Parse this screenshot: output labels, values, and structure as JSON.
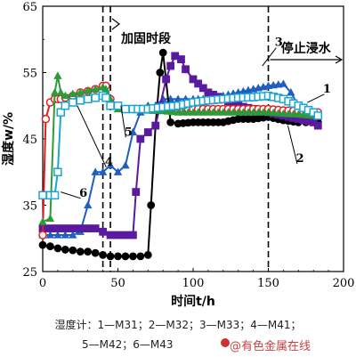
{
  "chart_data": {
    "type": "line",
    "xlabel": "时间t/h",
    "ylabel": "湿度w/%",
    "xlim": [
      0,
      200
    ],
    "ylim": [
      25,
      65
    ],
    "xticks": [
      0,
      50,
      100,
      150,
      200
    ],
    "yticks": [
      25,
      35,
      45,
      55,
      65
    ],
    "annotations": {
      "reinforce": "加固时段",
      "stop": "停止浸水"
    },
    "vlines": [
      40,
      45,
      150
    ],
    "series": [
      {
        "name": "1",
        "label_at": [
          189,
          52
        ],
        "color": "#1f5fbf",
        "marker": "triangle",
        "x": [
          0,
          5,
          10,
          15,
          20,
          25,
          30,
          35,
          40,
          45,
          50,
          55,
          60,
          65,
          70,
          75,
          80,
          85,
          90,
          95,
          100,
          110,
          120,
          130,
          140,
          150,
          160,
          165,
          170,
          175,
          180,
          183
        ],
        "y": [
          30.5,
          30.5,
          30.5,
          30.5,
          30.5,
          31,
          35,
          40,
          40,
          41,
          40,
          41,
          46,
          49,
          50,
          50,
          51,
          51,
          51,
          51,
          51,
          51,
          51.5,
          52,
          52.5,
          53,
          53.3,
          52,
          50,
          49,
          48.5,
          48
        ]
      },
      {
        "name": "2",
        "label_at": [
          171,
          41.5
        ],
        "color": "#000000",
        "marker": "circle",
        "x": [
          0,
          5,
          10,
          15,
          20,
          25,
          30,
          35,
          40,
          45,
          50,
          55,
          60,
          65,
          70,
          72,
          75,
          78,
          80,
          85,
          90,
          100,
          110,
          120,
          130,
          140,
          150,
          160,
          170,
          175,
          180,
          183
        ],
        "y": [
          29,
          28.8,
          28.5,
          28.3,
          28.2,
          28,
          28,
          27.8,
          27.5,
          27.3,
          27.3,
          27.3,
          27.3,
          27.3,
          27.5,
          35,
          47,
          55,
          58,
          47.5,
          47.3,
          47.5,
          47.5,
          47.5,
          48,
          48,
          48.3,
          47.8,
          47.5,
          47.5,
          47.5,
          47.5
        ]
      },
      {
        "name": "3",
        "label_at": [
          157,
          59
        ],
        "color": "#5a1aa0",
        "marker": "square",
        "x": [
          0,
          5,
          10,
          15,
          20,
          25,
          30,
          35,
          40,
          45,
          50,
          55,
          60,
          62,
          65,
          70,
          75,
          78,
          82,
          85,
          88,
          92,
          95,
          100,
          110,
          120,
          130,
          140,
          150,
          160,
          170,
          180,
          183
        ],
        "y": [
          31.5,
          31.5,
          31.5,
          31.5,
          31.5,
          31.5,
          31.5,
          31.5,
          31,
          30.5,
          30.5,
          30.5,
          30.5,
          37,
          45,
          46,
          47,
          50,
          54,
          56,
          57.5,
          57,
          55.5,
          54,
          52,
          51,
          50,
          49.5,
          49,
          48.5,
          48,
          47.5,
          47
        ]
      },
      {
        "name": "4",
        "label_at": [
          44,
          41
        ],
        "color": "#e02020",
        "marker": "circle-open",
        "x": [
          0,
          2,
          5,
          8,
          10,
          12,
          15,
          20,
          25,
          30,
          35,
          40,
          42,
          45,
          48,
          50,
          55,
          60,
          65,
          70,
          80,
          90,
          100,
          110,
          120,
          130,
          140,
          150,
          160,
          170,
          180,
          183
        ],
        "y": [
          30.5,
          48,
          50.5,
          51,
          51,
          51,
          51.2,
          51.5,
          52,
          52.2,
          52.5,
          53,
          53,
          51,
          50,
          50,
          49.5,
          49.5,
          49.5,
          49.5,
          49.5,
          49.5,
          49.5,
          49.5,
          49.5,
          49.5,
          49.5,
          49.5,
          49.3,
          49.2,
          49,
          49
        ]
      },
      {
        "name": "5",
        "label_at": [
          57,
          45.5
        ],
        "color": "#2a9d3a",
        "marker": "triangle",
        "x": [
          0,
          5,
          8,
          10,
          12,
          15,
          20,
          25,
          30,
          35,
          40,
          42,
          45,
          48,
          50,
          55,
          60,
          70,
          80,
          90,
          100,
          110,
          120,
          130,
          140,
          150,
          160,
          170,
          180,
          183
        ],
        "y": [
          32.5,
          33,
          52,
          54.5,
          52,
          51.5,
          51.8,
          52,
          52.3,
          52.5,
          52.8,
          52.5,
          51,
          50,
          49.5,
          49.5,
          49.5,
          49.3,
          49.2,
          49,
          49,
          49,
          49,
          49,
          49,
          49,
          48.8,
          48.7,
          48.5,
          48.5
        ]
      },
      {
        "name": "6",
        "label_at": [
          27,
          36.3
        ],
        "color": "#1aa5d6",
        "marker": "square-open",
        "x": [
          0,
          5,
          8,
          10,
          12,
          15,
          20,
          25,
          30,
          35,
          40,
          42,
          45,
          50,
          55,
          60,
          70,
          80,
          90,
          100,
          110,
          120,
          130,
          140,
          150,
          160,
          170,
          180,
          183
        ],
        "y": [
          36.5,
          36.5,
          36.5,
          40,
          49,
          50,
          50.5,
          50.8,
          51,
          51.2,
          51.5,
          51.2,
          50,
          50,
          49.5,
          49.5,
          49.5,
          49.8,
          50,
          50.5,
          50.8,
          51,
          51.2,
          51.3,
          51.5,
          51,
          50,
          49,
          48.5
        ]
      }
    ]
  },
  "caption": {
    "line1": "湿度计：1—M31；2—M32；3—M33；4—M41；",
    "line2": "5—M42；6—M43"
  },
  "watermark": "@有色金属在线"
}
